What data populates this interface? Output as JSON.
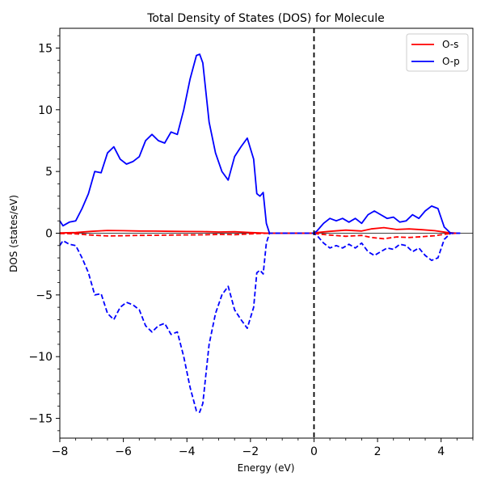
{
  "chart_data": {
    "type": "line",
    "title": "Total Density of States (DOS) for Molecule",
    "xlabel": "Energy (eV)",
    "ylabel": "DOS (states/eV)",
    "xlim": [
      -8,
      5
    ],
    "ylim": [
      -16.6,
      16.6
    ],
    "xticks": [
      -8,
      -6,
      -4,
      -2,
      0,
      2,
      4
    ],
    "xtick_labels": [
      "−8",
      "−6",
      "−4",
      "−2",
      "0",
      "2",
      "4"
    ],
    "yticks": [
      -15,
      -10,
      -5,
      0,
      5,
      10,
      15
    ],
    "ytick_labels": [
      "−15",
      "−10",
      "−5",
      "0",
      "5",
      "10",
      "15"
    ],
    "grid": false,
    "legend_position": "top-right",
    "fermi_level": 0,
    "series": [
      {
        "name": "O-s",
        "color": "#ff0000",
        "legend": true,
        "style": "solid",
        "x": [
          -8,
          -7.5,
          -7,
          -6.5,
          -6,
          -5.5,
          -5,
          -4.5,
          -4,
          -3.5,
          -3,
          -2.5,
          -2,
          -1.6,
          -1.4,
          -1.0,
          -0.5,
          0,
          0.1,
          0.5,
          1.0,
          1.5,
          1.8,
          2.2,
          2.6,
          3.0,
          3.4,
          3.8,
          4.2,
          4.5
        ],
        "values": [
          0.02,
          0.05,
          0.15,
          0.22,
          0.2,
          0.18,
          0.17,
          0.15,
          0.14,
          0.13,
          0.1,
          0.12,
          0.06,
          0.01,
          0.0,
          0.0,
          0.0,
          0.0,
          0.05,
          0.15,
          0.25,
          0.18,
          0.35,
          0.45,
          0.3,
          0.35,
          0.28,
          0.2,
          0.05,
          0.0
        ]
      },
      {
        "name": "O-p",
        "color": "#0000ff",
        "legend": true,
        "style": "solid",
        "x": [
          -8,
          -7.9,
          -7.7,
          -7.5,
          -7.3,
          -7.1,
          -6.9,
          -6.7,
          -6.5,
          -6.3,
          -6.1,
          -5.9,
          -5.7,
          -5.5,
          -5.3,
          -5.1,
          -4.9,
          -4.7,
          -4.5,
          -4.3,
          -4.1,
          -3.9,
          -3.7,
          -3.6,
          -3.5,
          -3.3,
          -3.1,
          -2.9,
          -2.7,
          -2.5,
          -2.3,
          -2.1,
          -1.9,
          -1.8,
          -1.7,
          -1.6,
          -1.5,
          -1.4,
          -1.0,
          -0.5,
          0,
          0.1,
          0.3,
          0.5,
          0.7,
          0.9,
          1.1,
          1.3,
          1.5,
          1.7,
          1.9,
          2.1,
          2.3,
          2.5,
          2.7,
          2.9,
          3.1,
          3.3,
          3.5,
          3.7,
          3.9,
          4.1,
          4.3,
          4.6
        ],
        "values": [
          1.0,
          0.6,
          0.9,
          1.0,
          2.0,
          3.2,
          5.0,
          4.9,
          6.5,
          7.0,
          6.0,
          5.6,
          5.8,
          6.2,
          7.5,
          8.0,
          7.5,
          7.3,
          8.2,
          8.0,
          10.0,
          12.5,
          14.4,
          14.5,
          13.8,
          9.0,
          6.5,
          5.0,
          4.3,
          6.2,
          7.0,
          7.7,
          6.0,
          3.2,
          3.0,
          3.3,
          0.8,
          0.0,
          0.0,
          0.0,
          0.0,
          0.2,
          0.8,
          1.2,
          1.0,
          1.2,
          0.9,
          1.2,
          0.8,
          1.5,
          1.8,
          1.5,
          1.2,
          1.3,
          0.9,
          1.0,
          1.5,
          1.2,
          1.8,
          2.2,
          2.0,
          0.5,
          0.0,
          0.0
        ]
      },
      {
        "name": "",
        "color": "#ff0000",
        "legend": false,
        "style": "dashed",
        "mirror_of": "O-s"
      },
      {
        "name": "",
        "color": "#0000ff",
        "legend": false,
        "style": "dashed",
        "mirror_of": "O-p"
      }
    ]
  }
}
